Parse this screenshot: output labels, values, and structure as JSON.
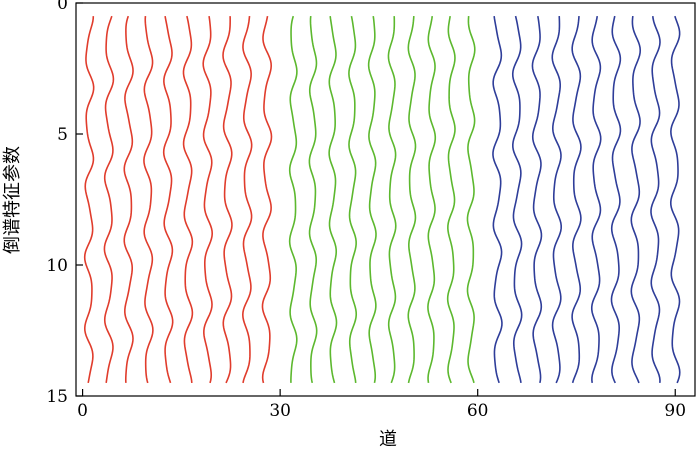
{
  "chart_data": {
    "type": "line",
    "title": "",
    "xlabel": "道",
    "ylabel": "倒谱特征参数",
    "xlim": [
      -1,
      93
    ],
    "ylim": [
      15,
      0
    ],
    "y_inverted": true,
    "grid": false,
    "x_ticks": [
      0,
      30,
      60,
      90
    ],
    "x_tick_labels": [
      "0",
      "30",
      "60",
      "90"
    ],
    "y_ticks": [
      0,
      5,
      10,
      15
    ],
    "y_tick_labels": [
      "0",
      "5",
      "10",
      "15"
    ],
    "depth_samples": [
      0.5,
      14.5
    ],
    "series": [
      {
        "traces": [
          1,
          4,
          7,
          10,
          13,
          16,
          19,
          22,
          25,
          28
        ],
        "amplitude": 0.55,
        "wavelength": 2.6,
        "color": "#e03c2c"
      },
      {
        "traces": [
          32,
          35,
          38,
          41,
          44,
          47,
          50,
          53,
          56,
          59
        ],
        "amplitude": 0.45,
        "wavelength": 2.6,
        "color": "#5cb82e"
      },
      {
        "traces": [
          63,
          66,
          69,
          72,
          75,
          78,
          81,
          84,
          87,
          90
        ],
        "amplitude": 0.55,
        "wavelength": 2.6,
        "color": "#2e3d99"
      }
    ]
  }
}
